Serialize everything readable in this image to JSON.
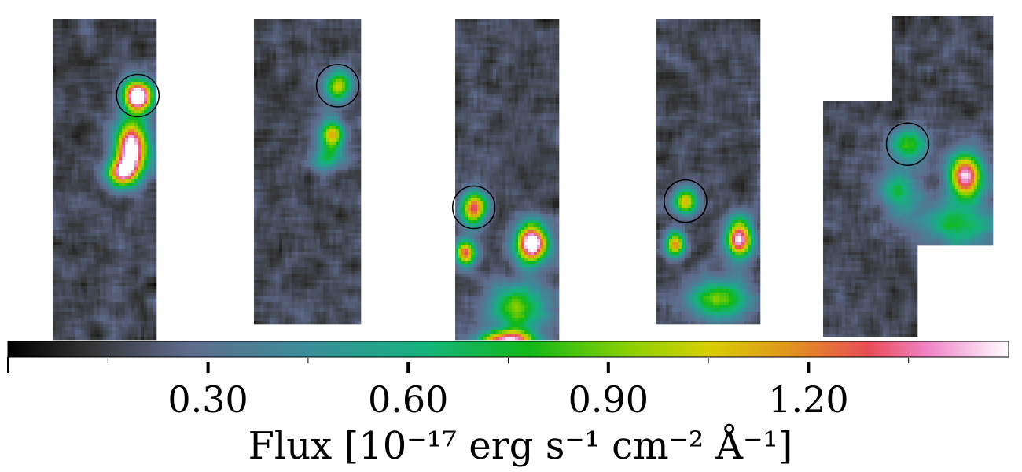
{
  "chart_data": {
    "type": "heatmap",
    "panels": [
      {
        "name": "panel-1",
        "sources": [
          {
            "x": 0.82,
            "y": 0.24,
            "peak": 1.5,
            "sx": 0.1,
            "sy": 0.035
          },
          {
            "x": 0.76,
            "y": 0.4,
            "peak": 1.45,
            "sx": 0.11,
            "sy": 0.06
          },
          {
            "x": 0.66,
            "y": 0.48,
            "peak": 1.1,
            "sx": 0.1,
            "sy": 0.03
          }
        ],
        "circle": {
          "x": 0.82,
          "y": 0.24
        }
      },
      {
        "name": "panel-2",
        "sources": [
          {
            "x": 0.79,
            "y": 0.22,
            "peak": 0.85,
            "sx": 0.09,
            "sy": 0.035
          },
          {
            "x": 0.73,
            "y": 0.38,
            "peak": 0.95,
            "sx": 0.08,
            "sy": 0.035
          },
          {
            "x": 0.68,
            "y": 0.46,
            "peak": 0.5,
            "sx": 0.1,
            "sy": 0.03
          }
        ],
        "circle": {
          "x": 0.79,
          "y": 0.22
        }
      },
      {
        "name": "panel-3",
        "sources": [
          {
            "x": 0.18,
            "y": 0.59,
            "peak": 1.15,
            "sx": 0.09,
            "sy": 0.035
          },
          {
            "x": 0.1,
            "y": 0.73,
            "peak": 1.1,
            "sx": 0.07,
            "sy": 0.03
          },
          {
            "x": 0.74,
            "y": 0.7,
            "peak": 1.5,
            "sx": 0.11,
            "sy": 0.045
          },
          {
            "x": 0.6,
            "y": 0.9,
            "peak": 0.75,
            "sx": 0.2,
            "sy": 0.05
          },
          {
            "x": 0.5,
            "y": 1.0,
            "peak": 1.2,
            "sx": 0.2,
            "sy": 0.02
          }
        ],
        "circle": {
          "x": 0.18,
          "y": 0.59
        }
      },
      {
        "name": "panel-4",
        "sources": [
          {
            "x": 0.28,
            "y": 0.6,
            "peak": 0.9,
            "sx": 0.08,
            "sy": 0.03
          },
          {
            "x": 0.18,
            "y": 0.74,
            "peak": 1.0,
            "sx": 0.07,
            "sy": 0.03
          },
          {
            "x": 0.8,
            "y": 0.72,
            "peak": 1.3,
            "sx": 0.09,
            "sy": 0.045
          },
          {
            "x": 0.6,
            "y": 0.92,
            "peak": 0.7,
            "sx": 0.2,
            "sy": 0.05
          }
        ],
        "circle": {
          "x": 0.28,
          "y": 0.6
        }
      }
    ],
    "panel5": {
      "sources": [
        {
          "x": 0.5,
          "y": 0.4,
          "peak": 0.65,
          "sx": 0.08,
          "sy": 0.035
        },
        {
          "x": 0.45,
          "y": 0.55,
          "peak": 0.55,
          "sx": 0.08,
          "sy": 0.05
        },
        {
          "x": 0.84,
          "y": 0.5,
          "peak": 1.25,
          "sx": 0.07,
          "sy": 0.05
        },
        {
          "x": 0.8,
          "y": 0.65,
          "peak": 0.55,
          "sx": 0.15,
          "sy": 0.05
        }
      ],
      "circle": {
        "x": 0.5,
        "y": 0.4
      }
    },
    "colorbar": {
      "range": [
        0.0,
        1.5
      ],
      "major_ticks": [
        0.3,
        0.6,
        0.9,
        1.2
      ],
      "tick_labels": [
        "0.30",
        "0.60",
        "0.90",
        "1.20"
      ],
      "minor_ticks": [
        0.15,
        0.45,
        0.75,
        1.05,
        1.35
      ],
      "label": "Flux [10⁻¹⁷ erg s⁻¹ cm⁻² Å⁻¹]",
      "colormap_stops": [
        [
          0.0,
          "#000000"
        ],
        [
          0.08,
          "#333333"
        ],
        [
          0.18,
          "#5f6b8c"
        ],
        [
          0.3,
          "#3a8d9a"
        ],
        [
          0.42,
          "#14b37c"
        ],
        [
          0.52,
          "#10b81a"
        ],
        [
          0.62,
          "#8ad000"
        ],
        [
          0.7,
          "#d6cf00"
        ],
        [
          0.78,
          "#e0951c"
        ],
        [
          0.86,
          "#e84c57"
        ],
        [
          0.92,
          "#f084c8"
        ],
        [
          1.0,
          "#ffffff"
        ]
      ]
    }
  }
}
